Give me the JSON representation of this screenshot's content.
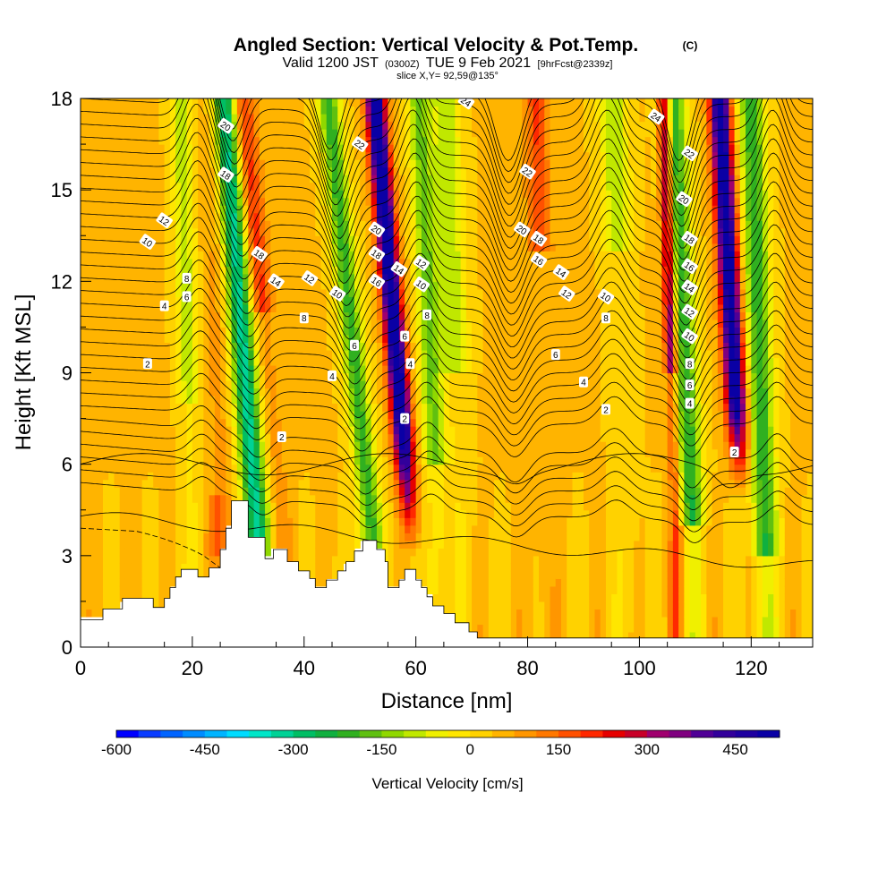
{
  "chart_data": {
    "type": "heatmap",
    "title": "Angled Section: Vertical Velocity & Pot.Temp.",
    "title_unit": "(C)",
    "subtitle_parts": [
      "Valid 1200 JST",
      "(0300Z)",
      "TUE 9 Feb 2021",
      "[9hrFcst@2339z]"
    ],
    "slice_label": "slice X,Y= 92,59@135°",
    "xlabel": "Distance [nm]",
    "ylabel": "Height [Kft MSL]",
    "xlim": [
      0,
      131
    ],
    "ylim": [
      0,
      18
    ],
    "x_ticks": [
      0,
      20,
      40,
      60,
      80,
      100,
      120
    ],
    "y_ticks": [
      0,
      3,
      6,
      9,
      12,
      15,
      18
    ],
    "colorbar": {
      "label": "Vertical Velocity [cm/s]",
      "min": -600,
      "max": 525,
      "step": 37.5,
      "tick_values": [
        -600,
        -450,
        -300,
        -150,
        0,
        150,
        300,
        450
      ],
      "colors": [
        "#0000ff",
        "#0a3cff",
        "#0064ff",
        "#008cff",
        "#00b4ff",
        "#00dcff",
        "#00e6c8",
        "#00d296",
        "#00be64",
        "#10b040",
        "#30b020",
        "#60c010",
        "#90d800",
        "#c0e800",
        "#f0f000",
        "#ffe600",
        "#ffd200",
        "#ffb400",
        "#ff9600",
        "#ff7800",
        "#ff5000",
        "#ff2800",
        "#e60000",
        "#c80028",
        "#a0006e",
        "#7f007f",
        "#500096",
        "#32009b",
        "#1e00a0",
        "#0a00a5"
      ]
    },
    "gridded": true,
    "wave_updraft_axes_x": [
      56,
      105,
      116
    ],
    "wave_downdraft_axes_x": [
      31,
      49,
      64,
      108,
      121
    ],
    "theta_contour_labels": [
      "2",
      "4",
      "6",
      "8",
      "10",
      "12",
      "14",
      "16",
      "18",
      "20",
      "22",
      "24"
    ],
    "theta_label_points": [
      {
        "x": 12,
        "y": 9.3,
        "v": "2"
      },
      {
        "x": 15,
        "y": 11.2,
        "v": "4"
      },
      {
        "x": 19,
        "y": 11.5,
        "v": "6"
      },
      {
        "x": 19,
        "y": 12.1,
        "v": "8"
      },
      {
        "x": 12,
        "y": 13.3,
        "v": "10"
      },
      {
        "x": 15,
        "y": 14.0,
        "v": "12"
      },
      {
        "x": 26,
        "y": 15.5,
        "v": "18"
      },
      {
        "x": 26,
        "y": 17.1,
        "v": "20"
      },
      {
        "x": 36,
        "y": 6.9,
        "v": "2"
      },
      {
        "x": 45,
        "y": 8.9,
        "v": "4"
      },
      {
        "x": 49,
        "y": 9.9,
        "v": "6"
      },
      {
        "x": 40,
        "y": 10.8,
        "v": "8"
      },
      {
        "x": 46,
        "y": 11.6,
        "v": "10"
      },
      {
        "x": 41,
        "y": 12.1,
        "v": "12"
      },
      {
        "x": 35,
        "y": 12.0,
        "v": "14"
      },
      {
        "x": 32,
        "y": 12.9,
        "v": "18"
      },
      {
        "x": 50,
        "y": 16.5,
        "v": "22"
      },
      {
        "x": 53,
        "y": 13.7,
        "v": "20"
      },
      {
        "x": 53,
        "y": 12.9,
        "v": "18"
      },
      {
        "x": 53,
        "y": 12.0,
        "v": "16"
      },
      {
        "x": 57,
        "y": 12.4,
        "v": "14"
      },
      {
        "x": 61,
        "y": 12.6,
        "v": "12"
      },
      {
        "x": 61,
        "y": 11.9,
        "v": "10"
      },
      {
        "x": 62,
        "y": 10.9,
        "v": "8"
      },
      {
        "x": 58,
        "y": 10.2,
        "v": "6"
      },
      {
        "x": 59,
        "y": 9.3,
        "v": "4"
      },
      {
        "x": 58,
        "y": 7.5,
        "v": "2"
      },
      {
        "x": 69,
        "y": 17.9,
        "v": "24"
      },
      {
        "x": 79,
        "y": 13.7,
        "v": "20"
      },
      {
        "x": 80,
        "y": 15.6,
        "v": "22"
      },
      {
        "x": 82,
        "y": 13.4,
        "v": "18"
      },
      {
        "x": 82,
        "y": 12.7,
        "v": "16"
      },
      {
        "x": 86,
        "y": 12.3,
        "v": "14"
      },
      {
        "x": 87,
        "y": 11.6,
        "v": "12"
      },
      {
        "x": 94,
        "y": 11.5,
        "v": "10"
      },
      {
        "x": 94,
        "y": 10.8,
        "v": "8"
      },
      {
        "x": 85,
        "y": 9.6,
        "v": "6"
      },
      {
        "x": 90,
        "y": 8.7,
        "v": "4"
      },
      {
        "x": 94,
        "y": 7.8,
        "v": "2"
      },
      {
        "x": 103,
        "y": 17.4,
        "v": "24"
      },
      {
        "x": 109,
        "y": 16.2,
        "v": "22"
      },
      {
        "x": 108,
        "y": 14.7,
        "v": "20"
      },
      {
        "x": 109,
        "y": 13.4,
        "v": "18"
      },
      {
        "x": 109,
        "y": 12.5,
        "v": "16"
      },
      {
        "x": 109,
        "y": 11.8,
        "v": "14"
      },
      {
        "x": 109,
        "y": 11.0,
        "v": "12"
      },
      {
        "x": 109,
        "y": 10.2,
        "v": "10"
      },
      {
        "x": 109,
        "y": 9.3,
        "v": "8"
      },
      {
        "x": 109,
        "y": 8.6,
        "v": "6"
      },
      {
        "x": 109,
        "y": 8.0,
        "v": "4"
      },
      {
        "x": 117,
        "y": 6.4,
        "v": "2"
      }
    ],
    "terrain_profile": [
      [
        0,
        0.9
      ],
      [
        4,
        0.9
      ],
      [
        4,
        1.25
      ],
      [
        7.5,
        1.25
      ],
      [
        7.5,
        1.6
      ],
      [
        13,
        1.6
      ],
      [
        13,
        1.3
      ],
      [
        15,
        1.3
      ],
      [
        15,
        1.6
      ],
      [
        16,
        1.6
      ],
      [
        16,
        1.95
      ],
      [
        17,
        1.95
      ],
      [
        17,
        2.3
      ],
      [
        18,
        2.3
      ],
      [
        18,
        2.55
      ],
      [
        21,
        2.55
      ],
      [
        21,
        2.3
      ],
      [
        23,
        2.3
      ],
      [
        23,
        2.6
      ],
      [
        25,
        2.6
      ],
      [
        25,
        3.2
      ],
      [
        26,
        3.2
      ],
      [
        26,
        3.9
      ],
      [
        27,
        3.9
      ],
      [
        27,
        4.8
      ],
      [
        30,
        4.8
      ],
      [
        30,
        3.6
      ],
      [
        33,
        3.6
      ],
      [
        33,
        2.9
      ],
      [
        34.5,
        2.9
      ],
      [
        34.5,
        3.2
      ],
      [
        37,
        3.2
      ],
      [
        37,
        2.8
      ],
      [
        39,
        2.8
      ],
      [
        39,
        2.5
      ],
      [
        41,
        2.5
      ],
      [
        41,
        2.25
      ],
      [
        42,
        2.25
      ],
      [
        42,
        1.95
      ],
      [
        44,
        1.95
      ],
      [
        44,
        2.2
      ],
      [
        46,
        2.2
      ],
      [
        46,
        2.5
      ],
      [
        47.5,
        2.5
      ],
      [
        47.5,
        2.8
      ],
      [
        49,
        2.8
      ],
      [
        49,
        3.15
      ],
      [
        50.5,
        3.15
      ],
      [
        50.5,
        3.5
      ],
      [
        53,
        3.5
      ],
      [
        53,
        3.2
      ],
      [
        54.5,
        3.2
      ],
      [
        54.5,
        2.8
      ],
      [
        55,
        2.8
      ],
      [
        55,
        1.95
      ],
      [
        57,
        1.95
      ],
      [
        57,
        2.2
      ],
      [
        58,
        2.2
      ],
      [
        58,
        2.55
      ],
      [
        60,
        2.55
      ],
      [
        60,
        2.2
      ],
      [
        61,
        2.2
      ],
      [
        61,
        1.95
      ],
      [
        62,
        1.95
      ],
      [
        62,
        1.65
      ],
      [
        63,
        1.65
      ],
      [
        63,
        1.35
      ],
      [
        65,
        1.35
      ],
      [
        65,
        1.1
      ],
      [
        67,
        1.1
      ],
      [
        67,
        0.8
      ],
      [
        69.5,
        0.8
      ],
      [
        69.5,
        0.5
      ],
      [
        71,
        0.5
      ],
      [
        71,
        0.3
      ],
      [
        131,
        0.3
      ]
    ]
  }
}
